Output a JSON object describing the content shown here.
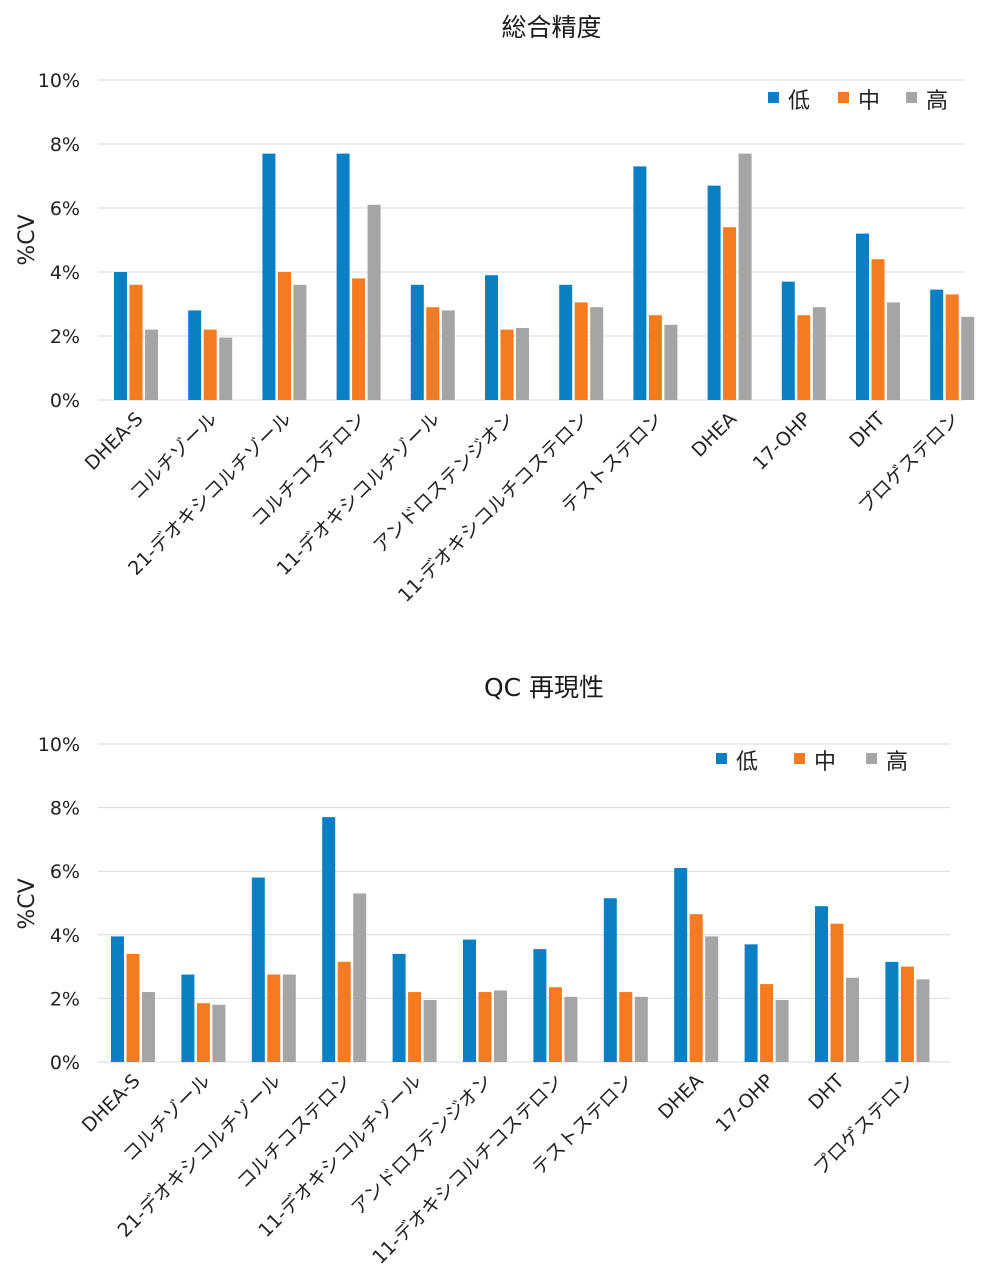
{
  "colors": {
    "low": "#0a7fc4",
    "mid": "#f47b20",
    "high": "#a5a5a5"
  },
  "chart_data": [
    {
      "type": "bar",
      "title": "総合精度",
      "xlabel": "",
      "ylabel": "%CV",
      "ylim": [
        0,
        10
      ],
      "yticks": [
        "0%",
        "2%",
        "4%",
        "6%",
        "8%",
        "10%"
      ],
      "legend_position": "top-right",
      "categories": [
        "DHEA-S",
        "コルチゾール",
        "21-デオキシコルチゾール",
        "コルチコステロン",
        "11-デオキシコルチゾール",
        "アンドロステンジオン",
        "11-デオキシコルチコステロン",
        "テストステロン",
        "DHEA",
        "17-OHP",
        "DHT",
        "プロゲステロン"
      ],
      "series": [
        {
          "name": "低",
          "values": [
            4.0,
            2.8,
            7.7,
            7.7,
            3.6,
            3.9,
            3.6,
            7.3,
            6.7,
            3.7,
            5.2,
            3.45
          ]
        },
        {
          "name": "中",
          "values": [
            3.6,
            2.2,
            4.0,
            3.8,
            2.9,
            2.2,
            3.05,
            2.65,
            5.4,
            2.65,
            4.4,
            3.3
          ]
        },
        {
          "name": "高",
          "values": [
            2.2,
            1.95,
            3.6,
            6.1,
            2.8,
            2.25,
            2.9,
            2.35,
            7.7,
            2.9,
            3.05,
            2.6
          ]
        }
      ]
    },
    {
      "type": "bar",
      "title": "QC 再現性",
      "xlabel": "",
      "ylabel": "%CV",
      "ylim": [
        0,
        10
      ],
      "yticks": [
        "0%",
        "2%",
        "4%",
        "6%",
        "8%",
        "10%"
      ],
      "legend_position": "top-right",
      "categories": [
        "DHEA-S",
        "コルチゾール",
        "21-デオキシコルチゾール",
        "コルチコステロン",
        "11-デオキシコルチゾール",
        "アンドロステンジオン",
        "11-デオキシコルチコステロン",
        "テストステロン",
        "DHEA",
        "17-OHP",
        "DHT",
        "プロゲステロン"
      ],
      "series": [
        {
          "name": "低",
          "values": [
            3.95,
            2.75,
            5.8,
            7.7,
            3.4,
            3.85,
            3.55,
            5.15,
            6.1,
            3.7,
            4.9,
            3.15
          ]
        },
        {
          "name": "中",
          "values": [
            3.4,
            1.85,
            2.75,
            3.15,
            2.2,
            2.2,
            2.35,
            2.2,
            4.65,
            2.45,
            4.35,
            3.0
          ]
        },
        {
          "name": "高",
          "values": [
            2.2,
            1.8,
            2.75,
            5.3,
            1.95,
            2.25,
            2.05,
            2.05,
            3.95,
            1.95,
            2.65,
            2.6
          ]
        }
      ]
    }
  ]
}
